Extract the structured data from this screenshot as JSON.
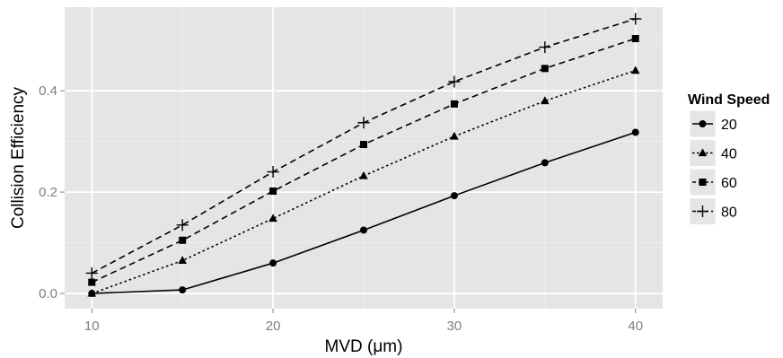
{
  "chart_data": {
    "type": "line",
    "xlabel": "MVD (μm)",
    "ylabel": "Collision Efficiency",
    "x": [
      10,
      15,
      20,
      25,
      30,
      35,
      40
    ],
    "xlim": [
      8.5,
      41.5
    ],
    "ylim": [
      -0.03,
      0.565
    ],
    "x_ticks": [
      10,
      20,
      30,
      40
    ],
    "x_tick_labels": [
      "10",
      "20",
      "30",
      "40"
    ],
    "y_ticks": [
      0.0,
      0.2,
      0.4
    ],
    "y_tick_labels": [
      "0.0",
      "0.2",
      "0.4"
    ],
    "grid": true,
    "panel_background": "#e5e5e5",
    "grid_color": "#ffffff",
    "line_color": "#000000",
    "legend": {
      "title": "Wind Speed",
      "position": "right"
    },
    "series": [
      {
        "name": "20",
        "marker": "circle",
        "linestyle": "solid",
        "values": [
          0.0,
          0.007,
          0.06,
          0.125,
          0.193,
          0.258,
          0.318
        ]
      },
      {
        "name": "40",
        "marker": "triangle",
        "linestyle": "dotted",
        "values": [
          0.0,
          0.065,
          0.148,
          0.232,
          0.31,
          0.38,
          0.44
        ]
      },
      {
        "name": "60",
        "marker": "square",
        "linestyle": "dashed",
        "values": [
          0.022,
          0.105,
          0.202,
          0.294,
          0.374,
          0.444,
          0.503
        ]
      },
      {
        "name": "80",
        "marker": "plus",
        "linestyle": "dashed",
        "values": [
          0.04,
          0.135,
          0.24,
          0.337,
          0.418,
          0.486,
          0.542
        ]
      }
    ]
  }
}
